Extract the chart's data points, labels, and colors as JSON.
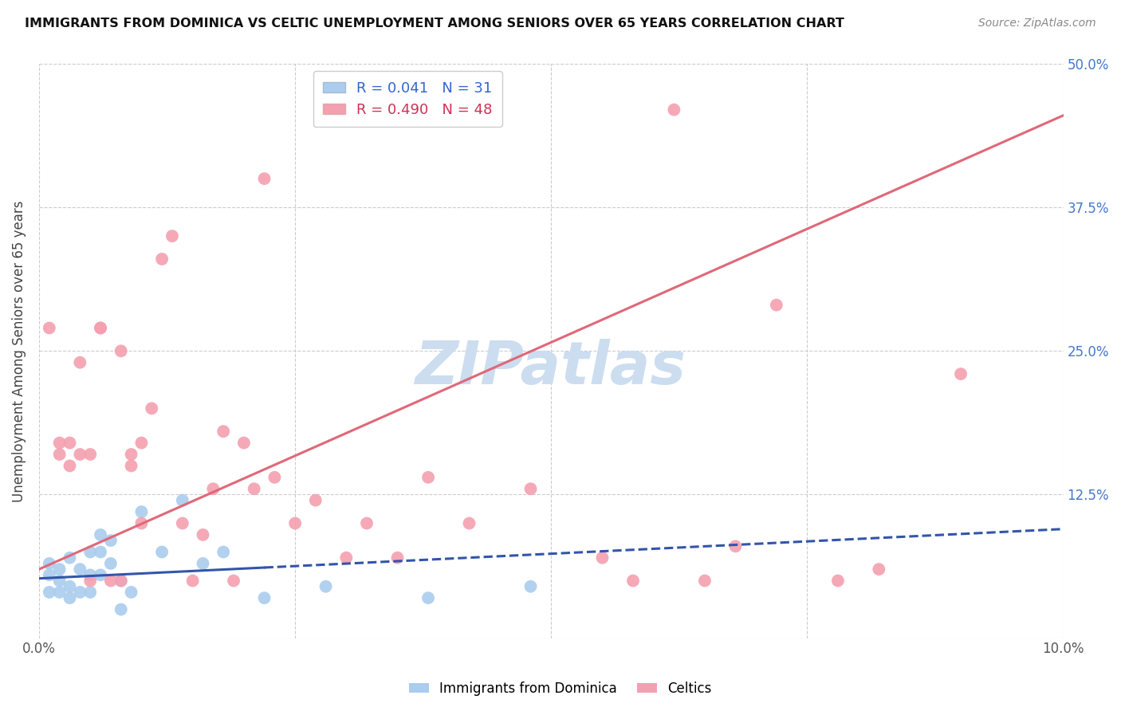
{
  "title": "IMMIGRANTS FROM DOMINICA VS CELTIC UNEMPLOYMENT AMONG SENIORS OVER 65 YEARS CORRELATION CHART",
  "source": "Source: ZipAtlas.com",
  "ylabel": "Unemployment Among Seniors over 65 years",
  "xlabel_dominica": "Immigrants from Dominica",
  "xlabel_celtics": "Celtics",
  "xlim": [
    0,
    0.1
  ],
  "ylim": [
    0,
    0.5
  ],
  "dominica_R": 0.041,
  "dominica_N": 31,
  "celtic_R": 0.49,
  "celtic_N": 48,
  "dominica_color": "#aaccee",
  "celtic_color": "#f4a0b0",
  "dominica_line_color": "#3355aa",
  "celtic_line_color": "#e06878",
  "dominica_line_solid_end": 0.022,
  "dominica_scatter_x": [
    0.001,
    0.001,
    0.001,
    0.002,
    0.002,
    0.002,
    0.003,
    0.003,
    0.003,
    0.004,
    0.004,
    0.005,
    0.005,
    0.005,
    0.006,
    0.006,
    0.006,
    0.007,
    0.007,
    0.008,
    0.008,
    0.009,
    0.01,
    0.012,
    0.014,
    0.016,
    0.018,
    0.022,
    0.028,
    0.038,
    0.048
  ],
  "dominica_scatter_y": [
    0.04,
    0.055,
    0.065,
    0.05,
    0.06,
    0.04,
    0.07,
    0.045,
    0.035,
    0.06,
    0.04,
    0.075,
    0.055,
    0.04,
    0.09,
    0.075,
    0.055,
    0.085,
    0.065,
    0.05,
    0.025,
    0.04,
    0.11,
    0.075,
    0.12,
    0.065,
    0.075,
    0.035,
    0.045,
    0.035,
    0.045
  ],
  "celtic_scatter_x": [
    0.001,
    0.002,
    0.002,
    0.003,
    0.003,
    0.004,
    0.004,
    0.005,
    0.005,
    0.006,
    0.006,
    0.007,
    0.008,
    0.008,
    0.009,
    0.009,
    0.01,
    0.01,
    0.011,
    0.012,
    0.013,
    0.014,
    0.015,
    0.016,
    0.017,
    0.018,
    0.019,
    0.02,
    0.021,
    0.022,
    0.023,
    0.025,
    0.027,
    0.03,
    0.032,
    0.035,
    0.038,
    0.042,
    0.048,
    0.055,
    0.058,
    0.062,
    0.065,
    0.068,
    0.072,
    0.078,
    0.082,
    0.09
  ],
  "celtic_scatter_y": [
    0.27,
    0.17,
    0.16,
    0.17,
    0.15,
    0.24,
    0.16,
    0.16,
    0.05,
    0.27,
    0.27,
    0.05,
    0.25,
    0.05,
    0.16,
    0.15,
    0.17,
    0.1,
    0.2,
    0.33,
    0.35,
    0.1,
    0.05,
    0.09,
    0.13,
    0.18,
    0.05,
    0.17,
    0.13,
    0.4,
    0.14,
    0.1,
    0.12,
    0.07,
    0.1,
    0.07,
    0.14,
    0.1,
    0.13,
    0.07,
    0.05,
    0.46,
    0.05,
    0.08,
    0.29,
    0.05,
    0.06,
    0.23
  ],
  "celtic_line_x0": 0.0,
  "celtic_line_y0": 0.06,
  "celtic_line_x1": 0.1,
  "celtic_line_y1": 0.455,
  "dominica_line_x0": 0.0,
  "dominica_line_y0": 0.052,
  "dominica_line_x1": 0.1,
  "dominica_line_y1": 0.095,
  "watermark": "ZIPatlas",
  "watermark_color": "#ccddf0",
  "background_color": "#ffffff"
}
